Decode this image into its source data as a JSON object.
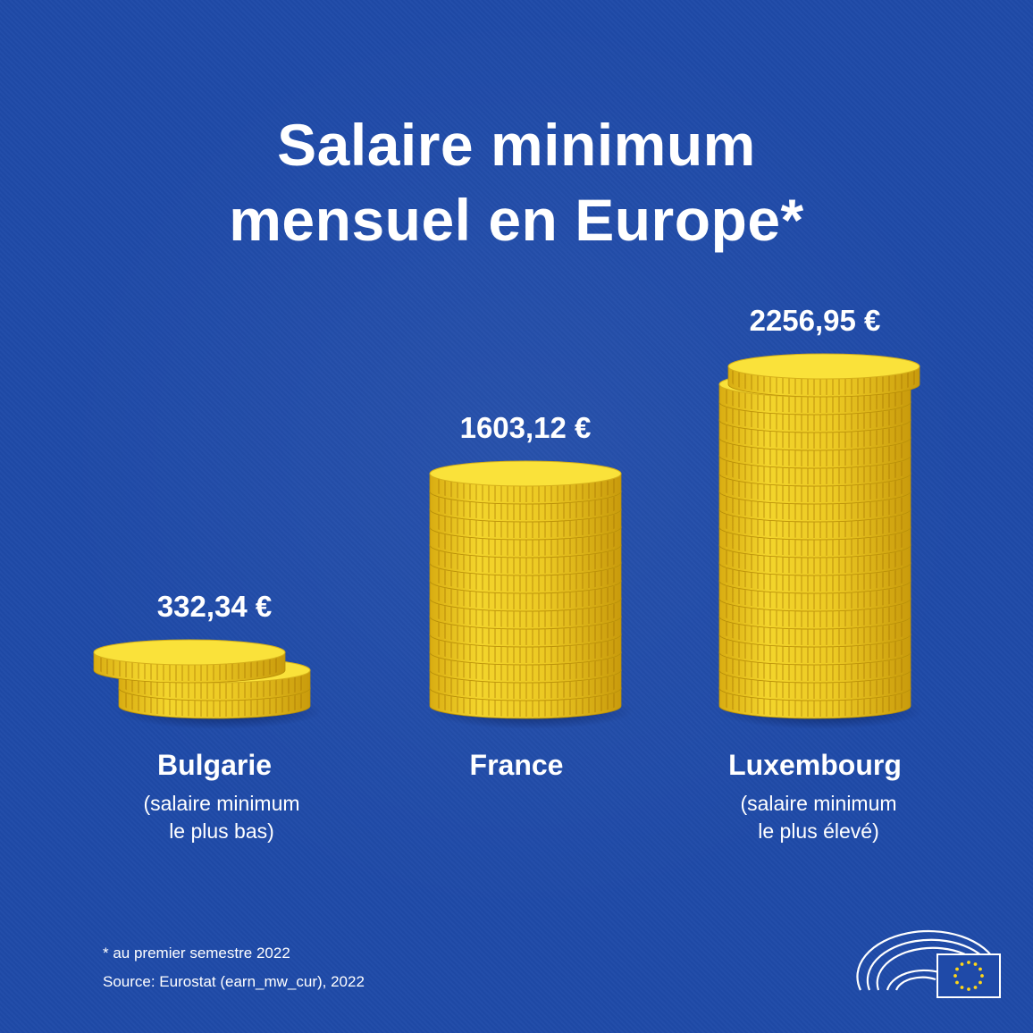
{
  "title_lines": [
    "Salaire minimum",
    "mensuel en Europe*"
  ],
  "footnote": "* au premier semestre 2022",
  "source": "Source: Eurostat (earn_mw_cur), 2022",
  "colors": {
    "background": "#1f4aa8",
    "coin_top": "#fae23a",
    "coin_side": "#e9c21c",
    "text": "#ffffff"
  },
  "icons": [
    "eu-parliament-logo-icon",
    "eu-flag-icon"
  ],
  "chart_data": {
    "type": "bar",
    "title": "Salaire minimum mensuel en Europe*",
    "unit": "€",
    "categories": [
      "Bulgarie",
      "France",
      "Luxembourg"
    ],
    "values": [
      332.34,
      1603.12,
      2256.95
    ],
    "value_labels": [
      "332,34 €",
      "1603,12 €",
      "2256,95 €"
    ],
    "notes": [
      "(salaire minimum le plus bas)",
      "",
      "(salaire minimum le plus élevé)"
    ],
    "note_lines": [
      [
        "(salaire minimum",
        "le plus bas)"
      ],
      [],
      [
        "(salaire minimum",
        "le plus élevé)"
      ]
    ],
    "legend": "none",
    "grid": false
  }
}
